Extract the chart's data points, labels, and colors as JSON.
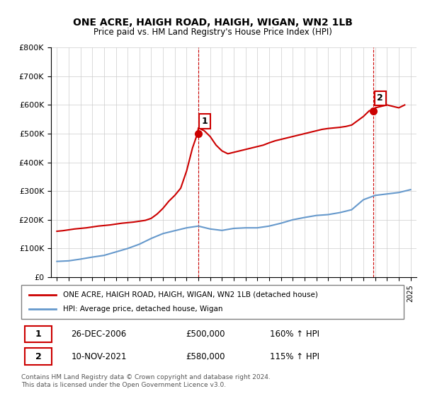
{
  "title": "ONE ACRE, HAIGH ROAD, HAIGH, WIGAN, WN2 1LB",
  "subtitle": "Price paid vs. HM Land Registry's House Price Index (HPI)",
  "legend_line1": "ONE ACRE, HAIGH ROAD, HAIGH, WIGAN, WN2 1LB (detached house)",
  "legend_line2": "HPI: Average price, detached house, Wigan",
  "footnote": "Contains HM Land Registry data © Crown copyright and database right 2024.\nThis data is licensed under the Open Government Licence v3.0.",
  "table_row1": [
    "1",
    "26-DEC-2006",
    "£500,000",
    "160% ↑ HPI"
  ],
  "table_row2": [
    "2",
    "10-NOV-2021",
    "£580,000",
    "115% ↑ HPI"
  ],
  "hpi_years": [
    1995,
    1996,
    1997,
    1998,
    1999,
    2000,
    2001,
    2002,
    2003,
    2004,
    2005,
    2006,
    2007,
    2008,
    2009,
    2010,
    2011,
    2012,
    2013,
    2014,
    2015,
    2016,
    2017,
    2018,
    2019,
    2020,
    2021,
    2022,
    2023,
    2024,
    2025
  ],
  "hpi_values": [
    55000,
    57000,
    63000,
    70000,
    76000,
    88000,
    100000,
    115000,
    135000,
    152000,
    162000,
    172000,
    178000,
    168000,
    163000,
    170000,
    172000,
    172000,
    178000,
    188000,
    200000,
    208000,
    215000,
    218000,
    225000,
    235000,
    270000,
    285000,
    290000,
    295000,
    305000
  ],
  "red_years": [
    1995.0,
    1995.5,
    1996.0,
    1996.5,
    1997.0,
    1997.5,
    1998.0,
    1998.5,
    1999.0,
    1999.5,
    2000.0,
    2000.5,
    2001.0,
    2001.5,
    2002.0,
    2002.5,
    2003.0,
    2003.5,
    2004.0,
    2004.5,
    2005.0,
    2005.5,
    2006.0,
    2006.5,
    2006.92,
    2007.0,
    2007.5,
    2008.0,
    2008.5,
    2009.0,
    2009.5,
    2010.0,
    2010.5,
    2011.0,
    2011.5,
    2012.0,
    2012.5,
    2013.0,
    2013.5,
    2014.0,
    2014.5,
    2015.0,
    2015.5,
    2016.0,
    2016.5,
    2017.0,
    2017.5,
    2018.0,
    2018.5,
    2019.0,
    2019.5,
    2020.0,
    2020.5,
    2021.0,
    2021.5,
    2021.84,
    2022.0,
    2022.5,
    2023.0,
    2023.5,
    2024.0,
    2024.5
  ],
  "red_values": [
    160000,
    162000,
    165000,
    168000,
    170000,
    172000,
    175000,
    178000,
    180000,
    182000,
    185000,
    188000,
    190000,
    192000,
    195000,
    198000,
    205000,
    220000,
    240000,
    265000,
    285000,
    310000,
    370000,
    450000,
    500000,
    520000,
    510000,
    490000,
    460000,
    440000,
    430000,
    435000,
    440000,
    445000,
    450000,
    455000,
    460000,
    468000,
    475000,
    480000,
    485000,
    490000,
    495000,
    500000,
    505000,
    510000,
    515000,
    518000,
    520000,
    522000,
    525000,
    530000,
    545000,
    560000,
    580000,
    580000,
    590000,
    595000,
    600000,
    595000,
    590000,
    600000
  ],
  "sale1_x": 2006.98,
  "sale1_y": 500000,
  "sale2_x": 2021.86,
  "sale2_y": 580000,
  "ylim": [
    0,
    800000
  ],
  "xlim": [
    1994.5,
    2025.5
  ],
  "red_color": "#cc0000",
  "blue_color": "#6699cc",
  "marker_color": "#cc0000",
  "vline_color": "#cc0000",
  "bg_color": "#ffffff",
  "grid_color": "#cccccc"
}
